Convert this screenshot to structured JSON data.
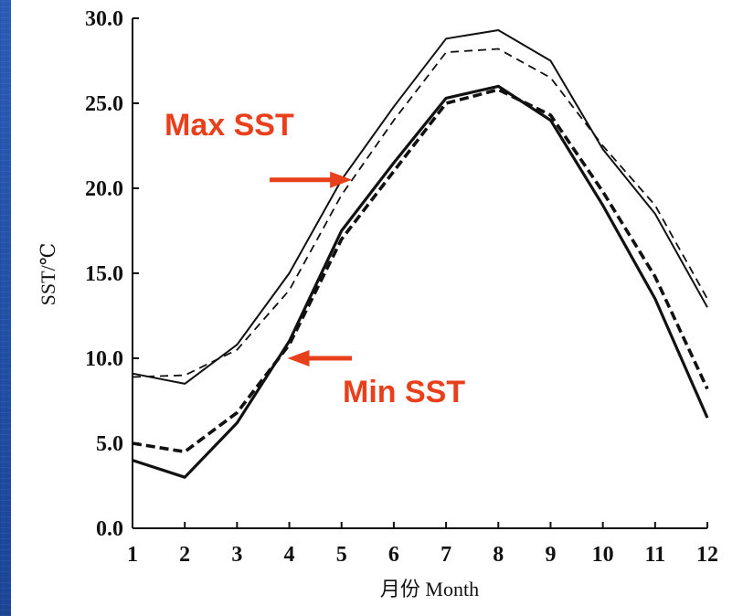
{
  "chart_data": {
    "type": "line",
    "x": [
      1,
      2,
      3,
      4,
      5,
      6,
      7,
      8,
      9,
      10,
      11,
      12
    ],
    "xlabel": "月份 Month",
    "ylabel": "SST/℃",
    "xlim": [
      1,
      12
    ],
    "ylim": [
      0,
      30
    ],
    "x_ticks": [
      "1",
      "2",
      "3",
      "4",
      "5",
      "6",
      "7",
      "8",
      "9",
      "10",
      "11",
      "12"
    ],
    "y_ticks": [
      "0.0",
      "5.0",
      "10.0",
      "15.0",
      "20.0",
      "25.0",
      "30.0"
    ],
    "grid": false,
    "series": [
      {
        "style": "solid-thin",
        "color": "#111111",
        "values": [
          9.1,
          8.5,
          10.8,
          15.0,
          20.5,
          24.8,
          28.8,
          29.3,
          27.5,
          22.3,
          18.5,
          13.0
        ]
      },
      {
        "style": "dashed-thin",
        "color": "#111111",
        "values": [
          8.9,
          9.0,
          10.5,
          14.0,
          19.6,
          24.0,
          28.0,
          28.2,
          26.5,
          22.5,
          19.0,
          13.5
        ]
      },
      {
        "style": "solid-thick",
        "color": "#111111",
        "values": [
          4.0,
          3.0,
          6.2,
          11.0,
          17.5,
          21.5,
          25.3,
          26.0,
          24.0,
          19.0,
          13.5,
          6.5
        ]
      },
      {
        "style": "dashed-thick",
        "color": "#111111",
        "values": [
          5.0,
          4.5,
          6.8,
          10.8,
          17.0,
          21.0,
          25.0,
          25.8,
          24.3,
          19.8,
          14.8,
          8.2
        ]
      }
    ],
    "annotations": [
      {
        "text": "Max SST",
        "points_to": {
          "x": 5.2,
          "y": 20.5
        },
        "color": "#e8401c"
      },
      {
        "text": "Min SST",
        "points_to": {
          "x": 4.0,
          "y": 10.0
        },
        "color": "#e8401c"
      }
    ]
  }
}
